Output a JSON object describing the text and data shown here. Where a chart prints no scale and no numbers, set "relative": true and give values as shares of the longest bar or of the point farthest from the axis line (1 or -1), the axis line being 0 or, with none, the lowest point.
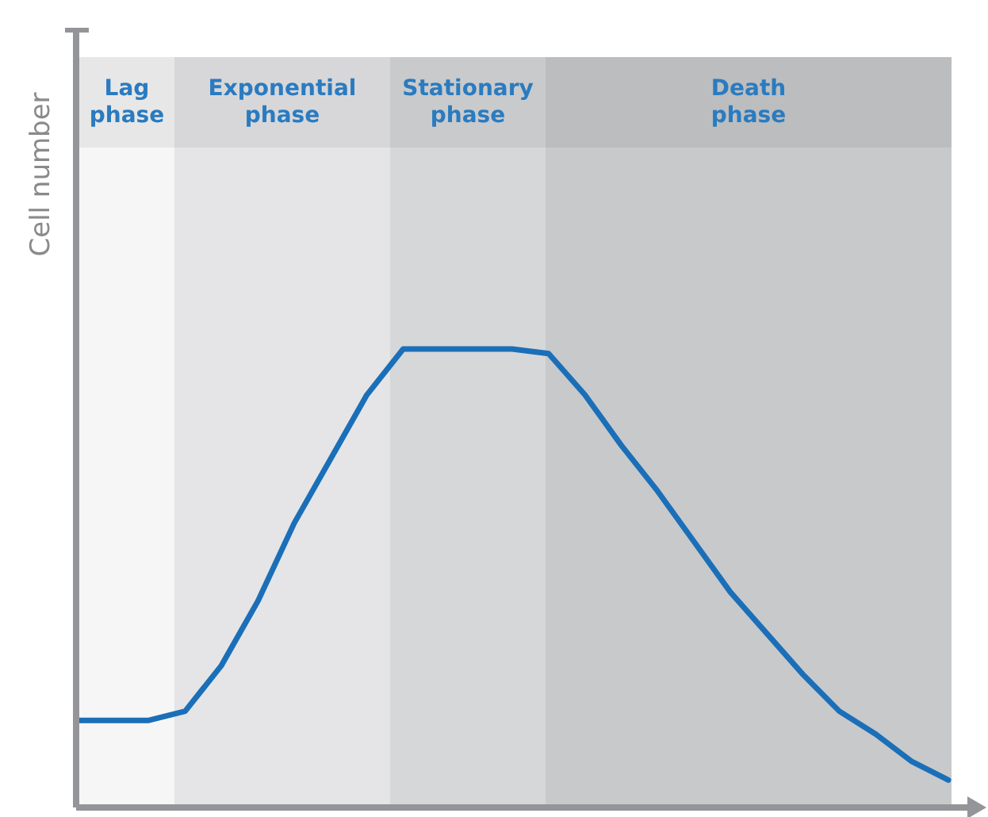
{
  "chart_data": {
    "type": "line",
    "ylabel": "Cell number",
    "relative": true,
    "tick_labels": false,
    "grid": false,
    "legend": false,
    "marker": "none",
    "line_style": "solid",
    "categories": [
      null,
      null,
      null,
      null,
      null,
      null,
      null,
      null,
      null,
      null,
      null,
      null,
      null,
      null,
      null,
      null,
      null,
      null,
      null,
      null,
      null,
      null,
      null,
      null,
      null
    ],
    "series": [
      {
        "color": "#1a6fb8",
        "values": [
          0.19,
          0.19,
          0.19,
          0.21,
          0.31,
          0.45,
          0.62,
          0.76,
          0.9,
          1,
          1,
          1,
          1,
          0.99,
          0.9,
          0.79,
          0.69,
          0.58,
          0.47,
          0.38,
          0.29,
          0.21,
          0.16,
          0.1,
          0.06
        ]
      }
    ],
    "annotations": [
      "Lag\nphase",
      "Exponential\nphase",
      "Stationary\nphase",
      "Death\nphase"
    ]
  }
}
